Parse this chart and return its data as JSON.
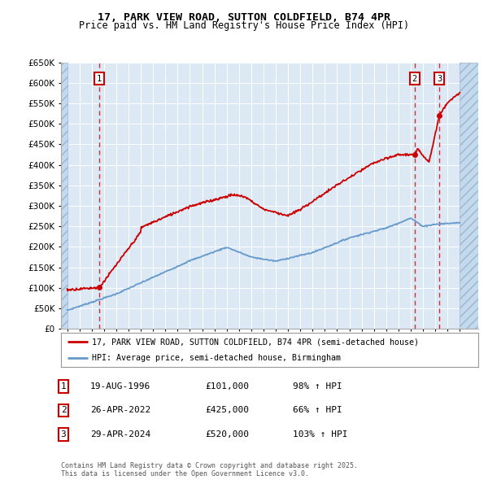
{
  "title": "17, PARK VIEW ROAD, SUTTON COLDFIELD, B74 4PR",
  "subtitle": "Price paid vs. HM Land Registry's House Price Index (HPI)",
  "legend_property": "17, PARK VIEW ROAD, SUTTON COLDFIELD, B74 4PR (semi-detached house)",
  "legend_hpi": "HPI: Average price, semi-detached house, Birmingham",
  "sales": [
    {
      "num": 1,
      "date": "19-AUG-1996",
      "date_x": 1996.63,
      "price": 101000,
      "hpi_pct": "98% ↑ HPI"
    },
    {
      "num": 2,
      "date": "26-APR-2022",
      "date_x": 2022.32,
      "price": 425000,
      "hpi_pct": "66% ↑ HPI"
    },
    {
      "num": 3,
      "date": "29-APR-2024",
      "date_x": 2024.33,
      "price": 520000,
      "hpi_pct": "103% ↑ HPI"
    }
  ],
  "footnote": "Contains HM Land Registry data © Crown copyright and database right 2025.\nThis data is licensed under the Open Government Licence v3.0.",
  "ylim": [
    0,
    650000
  ],
  "xlim": [
    1993.5,
    2027.5
  ],
  "hatch_left_end": 1994,
  "hatch_right_start": 2026,
  "background_color": "#dce9f5",
  "grid_color": "#ffffff",
  "property_line_color": "#cc0000",
  "hpi_line_color": "#6699cc",
  "fig_width": 6.0,
  "fig_height": 5.9
}
